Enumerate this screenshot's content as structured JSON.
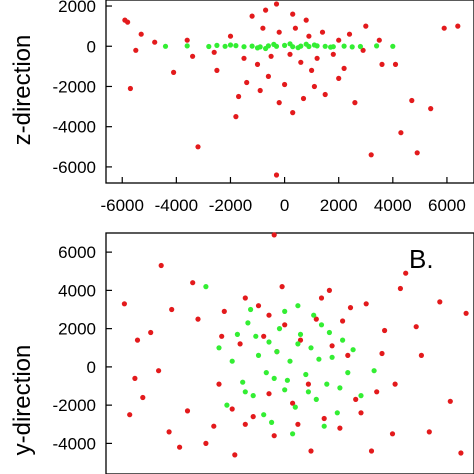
{
  "chart_data": [
    {
      "type": "scatter",
      "panel_label": "",
      "xlabel": "",
      "ylabel": "z-direction",
      "xlim": [
        -6600,
        7000
      ],
      "ylim": [
        -6800,
        2300
      ],
      "x_ticks": [
        -6000,
        -4000,
        -2000,
        0,
        2000,
        4000,
        6000
      ],
      "y_ticks": [
        -6000,
        -4000,
        -2000,
        0,
        2000
      ],
      "x_tick_labels": [
        "-6000",
        "-4000",
        "-2000",
        "0",
        "2000",
        "4000",
        "6000"
      ],
      "y_tick_labels": [
        "-6000",
        "-4000",
        "-2000",
        "0",
        "2000"
      ],
      "grid": false,
      "series": [
        {
          "color": "#e31a1c",
          "points": [
            [
              -5900,
              1300
            ],
            [
              -5700,
              -2100
            ],
            [
              -4100,
              -1300
            ],
            [
              -3600,
              300
            ],
            [
              -3200,
              -5000
            ],
            [
              -2500,
              -1200
            ],
            [
              -1800,
              -3500
            ],
            [
              -1400,
              -1800
            ],
            [
              -900,
              -2200
            ],
            [
              -600,
              -1500
            ],
            [
              -300,
              -6400
            ],
            [
              -200,
              -2800
            ],
            [
              0,
              -1900
            ],
            [
              300,
              -3300
            ],
            [
              700,
              -2600
            ],
            [
              1000,
              -1200
            ],
            [
              1500,
              -2400
            ],
            [
              2000,
              -1600
            ],
            [
              2600,
              -2800
            ],
            [
              3200,
              -5400
            ],
            [
              3600,
              -900
            ],
            [
              4100,
              -900
            ],
            [
              4300,
              -4300
            ],
            [
              4700,
              -2700
            ],
            [
              4900,
              -5300
            ],
            [
              5400,
              -3100
            ],
            [
              5900,
              900
            ],
            [
              6400,
              1000
            ],
            [
              -5800,
              1200
            ],
            [
              -5300,
              600
            ],
            [
              -3400,
              -500
            ],
            [
              -1200,
              1500
            ],
            [
              -700,
              1800
            ],
            [
              -300,
              2100
            ],
            [
              300,
              1600
            ],
            [
              800,
              1300
            ],
            [
              -2000,
              500
            ],
            [
              -1500,
              -600
            ],
            [
              -1000,
              -900
            ],
            [
              -500,
              -500
            ],
            [
              200,
              -400
            ],
            [
              600,
              -800
            ],
            [
              1200,
              -600
            ],
            [
              1800,
              -400
            ],
            [
              2400,
              600
            ],
            [
              3000,
              1000
            ],
            [
              -2600,
              -300
            ],
            [
              -800,
              900
            ],
            [
              -200,
              700
            ],
            [
              400,
              900
            ],
            [
              900,
              500
            ],
            [
              1400,
              700
            ],
            [
              2000,
              300
            ],
            [
              2900,
              -200
            ],
            [
              3500,
              300
            ],
            [
              -4800,
              200
            ],
            [
              -5500,
              -200
            ],
            [
              1100,
              -2000
            ],
            [
              -1700,
              -2500
            ],
            [
              2200,
              -1100
            ]
          ]
        },
        {
          "color": "#33ee33",
          "points": [
            [
              -4400,
              0
            ],
            [
              -3600,
              20
            ],
            [
              -2800,
              -10
            ],
            [
              -2200,
              0
            ],
            [
              -1800,
              30
            ],
            [
              -1500,
              -20
            ],
            [
              -1200,
              10
            ],
            [
              -900,
              -30
            ],
            [
              -600,
              20
            ],
            [
              -300,
              0
            ],
            [
              0,
              40
            ],
            [
              300,
              -20
            ],
            [
              600,
              10
            ],
            [
              900,
              -10
            ],
            [
              1200,
              20
            ],
            [
              1500,
              0
            ],
            [
              1800,
              -20
            ],
            [
              2200,
              10
            ],
            [
              2800,
              -10
            ],
            [
              3400,
              20
            ],
            [
              4000,
              0
            ],
            [
              -2000,
              60
            ],
            [
              -1000,
              -80
            ],
            [
              -400,
              90
            ],
            [
              500,
              -70
            ],
            [
              1100,
              60
            ],
            [
              1700,
              -40
            ],
            [
              -2500,
              40
            ],
            [
              2500,
              -30
            ],
            [
              200,
              120
            ],
            [
              -700,
              -110
            ],
            [
              800,
              100
            ]
          ]
        }
      ]
    },
    {
      "type": "scatter",
      "panel_label": "B.",
      "xlabel": "",
      "ylabel": "y-direction",
      "xlim": [
        -7000,
        7000
      ],
      "ylim": [
        -5600,
        7000
      ],
      "x_ticks": [],
      "y_ticks": [
        -4000,
        -2000,
        0,
        2000,
        4000,
        6000
      ],
      "x_tick_labels": [],
      "y_tick_labels": [
        "-4000",
        "-2000",
        "0",
        "2000",
        "4000",
        "6000"
      ],
      "grid": false,
      "series": [
        {
          "color": "#e31a1c",
          "points": [
            [
              -5900,
              -600
            ],
            [
              -5600,
              -1600
            ],
            [
              -5000,
              -200
            ],
            [
              -4900,
              5300
            ],
            [
              -3700,
              4400
            ],
            [
              -3200,
              -4000
            ],
            [
              -2900,
              -3100
            ],
            [
              -2500,
              2900
            ],
            [
              -2200,
              -2200
            ],
            [
              -1900,
              1200
            ],
            [
              -1700,
              3600
            ],
            [
              -1400,
              -2600
            ],
            [
              -1000,
              1600
            ],
            [
              -800,
              -1400
            ],
            [
              -500,
              800
            ],
            [
              -200,
              2200
            ],
            [
              100,
              -1900
            ],
            [
              400,
              1400
            ],
            [
              700,
              -900
            ],
            [
              1000,
              2500
            ],
            [
              1300,
              -2700
            ],
            [
              1600,
              1100
            ],
            [
              1900,
              -3200
            ],
            [
              2200,
              600
            ],
            [
              2500,
              -1700
            ],
            [
              2900,
              3300
            ],
            [
              3300,
              -1300
            ],
            [
              3600,
              1900
            ],
            [
              3900,
              -3500
            ],
            [
              4400,
              4900
            ],
            [
              4800,
              2100
            ],
            [
              5300,
              -3400
            ],
            [
              5700,
              3400
            ],
            [
              6100,
              -1800
            ],
            [
              6700,
              2800
            ],
            [
              -6100,
              -2500
            ],
            [
              -5300,
              1800
            ],
            [
              -4200,
              -4200
            ],
            [
              -3500,
              2500
            ],
            [
              -2700,
              -900
            ],
            [
              -600,
              -3600
            ],
            [
              1500,
              4000
            ],
            [
              2300,
              3100
            ],
            [
              3100,
              -4400
            ],
            [
              -1200,
              3200
            ],
            [
              2700,
              -2400
            ],
            [
              -300,
              4200
            ],
            [
              4000,
              -900
            ],
            [
              -4500,
              3000
            ],
            [
              -1700,
              -3000
            ],
            [
              800,
              -4400
            ],
            [
              3500,
              700
            ],
            [
              -2100,
              -4600
            ],
            [
              5000,
              600
            ],
            [
              -3900,
              -2300
            ],
            [
              1200,
              3600
            ],
            [
              -800,
              2700
            ],
            [
              300,
              -3000
            ],
            [
              2000,
              2400
            ],
            [
              -2600,
              1600
            ],
            [
              -5800,
              1400
            ],
            [
              -6300,
              3300
            ],
            [
              6500,
              -4500
            ],
            [
              4200,
              4100
            ],
            [
              -600,
              6900
            ],
            [
              -4600,
              -3400
            ]
          ]
        },
        {
          "color": "#33ee33",
          "points": [
            [
              -2400,
              -2000
            ],
            [
              -2000,
              1700
            ],
            [
              -1800,
              -800
            ],
            [
              -1600,
              2300
            ],
            [
              -1400,
              -1500
            ],
            [
              -1200,
              600
            ],
            [
              -1000,
              -2500
            ],
            [
              -800,
              1300
            ],
            [
              -600,
              -600
            ],
            [
              -400,
              2000
            ],
            [
              -200,
              -1200
            ],
            [
              0,
              300
            ],
            [
              200,
              -2100
            ],
            [
              400,
              1700
            ],
            [
              600,
              -400
            ],
            [
              800,
              1000
            ],
            [
              1000,
              -1700
            ],
            [
              1200,
              2200
            ],
            [
              1400,
              -900
            ],
            [
              1600,
              500
            ],
            [
              1800,
              -2400
            ],
            [
              2000,
              1400
            ],
            [
              2200,
              -300
            ],
            [
              2400,
              900
            ],
            [
              -2200,
              300
            ],
            [
              -1700,
              -1300
            ],
            [
              -1300,
              1600
            ],
            [
              -900,
              -300
            ],
            [
              -500,
              800
            ],
            [
              -100,
              -700
            ],
            [
              300,
              1200
            ],
            [
              700,
              -1300
            ],
            [
              1100,
              400
            ],
            [
              1500,
              1800
            ],
            [
              1900,
              -1100
            ],
            [
              -200,
              2900
            ],
            [
              300,
              3200
            ],
            [
              -3200,
              4200
            ],
            [
              -700,
              -2900
            ],
            [
              1300,
              -3100
            ],
            [
              2700,
              -1500
            ],
            [
              -2700,
              1000
            ],
            [
              3200,
              -200
            ],
            [
              -1500,
              3000
            ],
            [
              900,
              2700
            ],
            [
              100,
              -3500
            ]
          ]
        }
      ]
    }
  ]
}
